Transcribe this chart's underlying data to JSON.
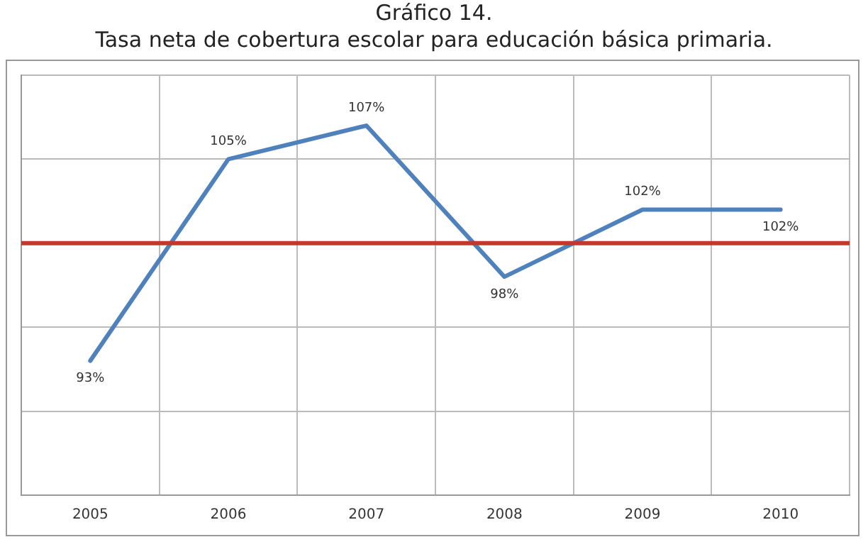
{
  "chart_data": {
    "type": "line",
    "title": "Gráfico 14.",
    "subtitle": "Tasa neta de cobertura escolar para educación básica primaria.",
    "categories": [
      "2005",
      "2006",
      "2007",
      "2008",
      "2009",
      "2010"
    ],
    "series": [
      {
        "color": "#4f81bd",
        "values": [
          93,
          105,
          107,
          98,
          102,
          102
        ],
        "value_labels": [
          "93%",
          "105%",
          "107%",
          "98%",
          "102%",
          "102%"
        ]
      }
    ],
    "ylim": [
      85,
      110
    ],
    "yticks": [
      {
        "value": 85,
        "label": null
      },
      {
        "value": 90,
        "label": null
      },
      {
        "value": 95,
        "label": null
      },
      {
        "value": 100,
        "label": null
      },
      {
        "value": 105,
        "label": null
      },
      {
        "value": 110,
        "label": null
      }
    ],
    "tick_labels": "x",
    "grid": true,
    "legend": false,
    "marker": "none",
    "line_style": "solid",
    "ref_lines": [
      {
        "axis": "y",
        "value": 100,
        "color": "#c0392b"
      }
    ]
  }
}
